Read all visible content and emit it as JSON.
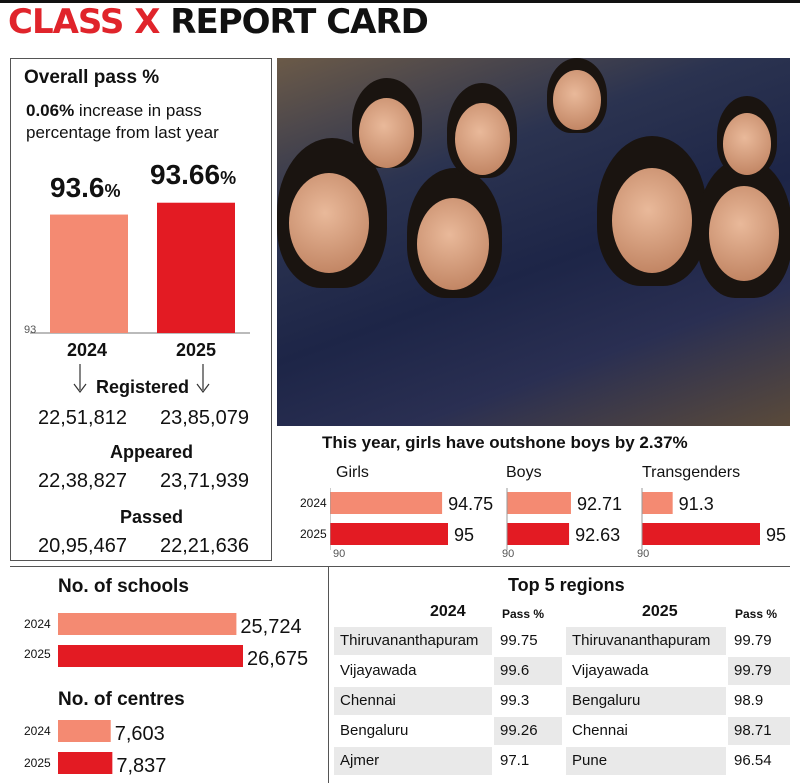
{
  "title_red": "CLASS X",
  "title_black": "REPORT CARD",
  "pass": {
    "heading": "Overall pass %",
    "note_bold": "0.06%",
    "note_rest1": " increase in pass",
    "note_rest2": "percentage from last year",
    "axis_min": "93",
    "v2024": "93.6",
    "v2025": "93.66",
    "pct": "%",
    "y2024": "2024",
    "y2025": "2025",
    "registered_label": "Registered",
    "registered_2024": "22,51,812",
    "registered_2025": "23,85,079",
    "appeared_label": "Appeared",
    "appeared_2024": "22,38,827",
    "appeared_2025": "23,71,939",
    "passed_label": "Passed",
    "passed_2024": "20,95,467",
    "passed_2025": "22,21,636"
  },
  "gender": {
    "heading": "This year, girls have outshone boys by 2.37%",
    "girls": "Girls",
    "boys": "Boys",
    "trans": "Transgenders",
    "y2024": "2024",
    "y2025": "2025",
    "axis_min": "90",
    "girls_2024": "94.75",
    "girls_2025": "95",
    "boys_2024": "92.71",
    "boys_2025": "92.63",
    "trans_2024": "91.3",
    "trans_2025": "95"
  },
  "schools": {
    "heading": "No. of schools",
    "y2024": "2024",
    "y2025": "2025",
    "v2024": "25,724",
    "v2025": "26,675"
  },
  "centres": {
    "heading": "No. of centres",
    "y2024": "2024",
    "y2025": "2025",
    "v2024": "7,603",
    "v2025": "7,837"
  },
  "regions": {
    "heading": "Top 5 regions",
    "h2024": "2024",
    "h2025": "2025",
    "pass_label": "Pass %",
    "rows": [
      {
        "r24": "Thiruvananthapuram",
        "p24": "99.75",
        "r25": "Thiruvananthapuram",
        "p25": "99.79"
      },
      {
        "r24": "Vijayawada",
        "p24": "99.6",
        "r25": "Vijayawada",
        "p25": "99.79"
      },
      {
        "r24": "Chennai",
        "p24": "99.3",
        "r25": "Bengaluru",
        "p25": "98.9"
      },
      {
        "r24": "Bengaluru",
        "p24": "99.26",
        "r25": "Chennai",
        "p25": "98.71"
      },
      {
        "r24": "Ajmer",
        "p24": "97.1",
        "r25": "Pune",
        "p25": "96.54"
      }
    ]
  },
  "colors": {
    "y2024": "#f48a72",
    "y2025": "#e31b23"
  },
  "chart_data": [
    {
      "type": "bar",
      "title": "Overall pass %",
      "categories": [
        "2024",
        "2025"
      ],
      "values": [
        93.6,
        93.66
      ],
      "ylim": [
        93,
        93.7
      ]
    },
    {
      "type": "bar",
      "title": "This year, girls have outshone boys by 2.37%",
      "categories": [
        "Girls",
        "Boys",
        "Transgenders"
      ],
      "series": [
        {
          "name": "2024",
          "values": [
            94.75,
            92.71,
            91.3
          ]
        },
        {
          "name": "2025",
          "values": [
            95,
            92.63,
            95
          ]
        }
      ],
      "xlim": [
        90,
        95
      ]
    },
    {
      "type": "bar",
      "title": "No. of schools",
      "categories": [
        "2024",
        "2025"
      ],
      "values": [
        25724,
        26675
      ]
    },
    {
      "type": "bar",
      "title": "No. of centres",
      "categories": [
        "2024",
        "2025"
      ],
      "values": [
        7603,
        7837
      ]
    },
    {
      "type": "table",
      "title": "Top 5 regions",
      "columns": [
        "2024",
        "Pass %",
        "2025",
        "Pass %"
      ],
      "rows": [
        [
          "Thiruvananthapuram",
          99.75,
          "Thiruvananthapuram",
          99.79
        ],
        [
          "Vijayawada",
          99.6,
          "Vijayawada",
          99.79
        ],
        [
          "Chennai",
          99.3,
          "Bengaluru",
          98.9
        ],
        [
          "Bengaluru",
          99.26,
          "Chennai",
          98.71
        ],
        [
          "Ajmer",
          97.1,
          "Pune",
          96.54
        ]
      ]
    }
  ]
}
